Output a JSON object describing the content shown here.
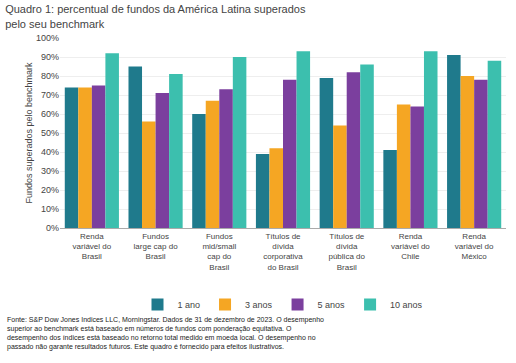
{
  "chart_data": {
    "type": "bar",
    "title": "Quadro 1: percentual de fundos da América Latina superados\npelo seu benchmark",
    "ylabel": "Fundos superados pelo benchmark",
    "footnote": "Fonte: S&P Dow Jones Indices LLC, Morningstar. Dados de 31 de dezembro de 2023. O desempenho\nsuperior ao benchmark está baseado em números de fundos com ponderação equitativa. O\ndesempenho dos índices está baseado no retorno total medido em moeda local. O desempenho no\npassado não garante resultados futuros. Este quadro é fornecido para efeitos ilustrativos.",
    "categories": [
      "Renda\nvariável do\nBrasil",
      "Fundos\nlarge cap do\nBrasil",
      "Fundos\nmid/small\ncap do\nBrasil",
      "Títulos de\ndívida\ncorporativa\ndo Brasil",
      "Títulos de\ndívida\npública do\nBrasil",
      "Renda\nvariável do\nChile",
      "Renda\nvariável do\nMéxico"
    ],
    "series": [
      {
        "name": "1 ano",
        "color": "#1f7a8c",
        "values": [
          74,
          85,
          60,
          39,
          79,
          41,
          91
        ]
      },
      {
        "name": "3 anos",
        "color": "#f5a623",
        "values": [
          74,
          56,
          67,
          42,
          54,
          65,
          80
        ]
      },
      {
        "name": "5 anos",
        "color": "#7b3f9e",
        "values": [
          75,
          71,
          73,
          78,
          82,
          64,
          78
        ]
      },
      {
        "name": "10 anos",
        "color": "#3cbfae",
        "values": [
          92,
          81,
          90,
          93,
          86,
          93,
          88
        ]
      }
    ],
    "ylim": [
      0,
      100
    ],
    "yticks": [
      {
        "value": 0,
        "label": "0%"
      },
      {
        "value": 10,
        "label": "10%"
      },
      {
        "value": 20,
        "label": "20%"
      },
      {
        "value": 30,
        "label": "30%"
      },
      {
        "value": 40,
        "label": "40%"
      },
      {
        "value": 50,
        "label": "50%"
      },
      {
        "value": 60,
        "label": "60%"
      },
      {
        "value": 70,
        "label": "70%"
      },
      {
        "value": 80,
        "label": "80%"
      },
      {
        "value": 90,
        "label": "90%"
      },
      {
        "value": 100,
        "label": "100%"
      }
    ],
    "grid": true,
    "legend": "bottom"
  }
}
